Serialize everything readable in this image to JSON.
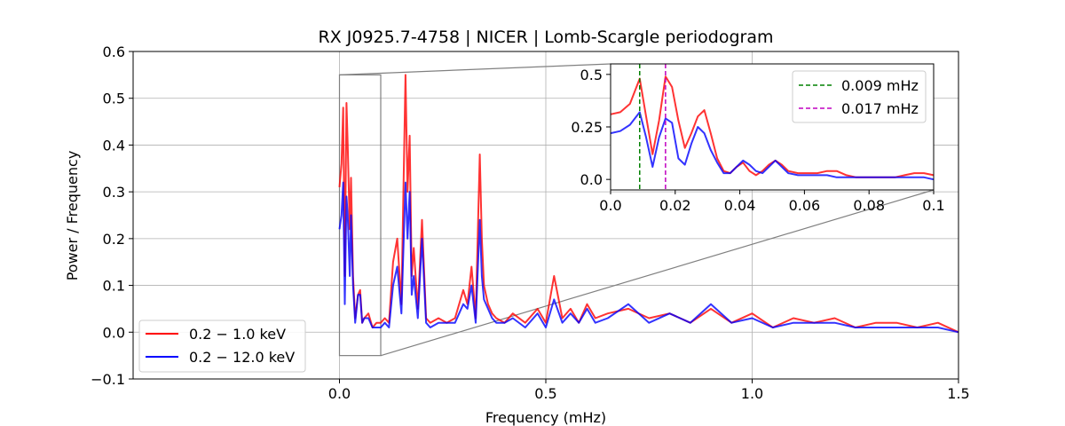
{
  "chart_data": [
    {
      "type": "line",
      "title": "RX J0925.7-4758 | NICER | Lomb-Scargle periodogram",
      "xlabel": "Frequency (mHz)",
      "ylabel": "Power / Frequency",
      "xlim": [
        -0.5,
        1.5
      ],
      "ylim": [
        -0.1,
        0.6
      ],
      "xticks": [
        "0.0",
        "0.5",
        "1.0",
        "1.5"
      ],
      "yticks": [
        "−0.1",
        "0.0",
        "0.1",
        "0.2",
        "0.3",
        "0.4",
        "0.5",
        "0.6"
      ],
      "grid": true,
      "legend_position": "lower-left",
      "series": [
        {
          "name": "0.2 − 1.0 keV",
          "color": "#ff0000",
          "x": [
            0.0,
            0.005,
            0.009,
            0.013,
            0.017,
            0.02,
            0.025,
            0.028,
            0.033,
            0.038,
            0.045,
            0.05,
            0.055,
            0.06,
            0.07,
            0.08,
            0.09,
            0.1,
            0.11,
            0.12,
            0.13,
            0.14,
            0.15,
            0.16,
            0.165,
            0.17,
            0.175,
            0.18,
            0.19,
            0.2,
            0.21,
            0.22,
            0.24,
            0.26,
            0.28,
            0.3,
            0.31,
            0.32,
            0.33,
            0.34,
            0.345,
            0.35,
            0.36,
            0.37,
            0.38,
            0.4,
            0.42,
            0.45,
            0.48,
            0.5,
            0.52,
            0.54,
            0.56,
            0.58,
            0.6,
            0.62,
            0.65,
            0.7,
            0.75,
            0.8,
            0.85,
            0.9,
            0.95,
            1.0,
            1.05,
            1.1,
            1.15,
            1.2,
            1.25,
            1.3,
            1.35,
            1.4,
            1.45,
            1.5
          ],
          "y": [
            0.31,
            0.36,
            0.48,
            0.12,
            0.49,
            0.4,
            0.22,
            0.33,
            0.12,
            0.03,
            0.08,
            0.09,
            0.02,
            0.03,
            0.04,
            0.01,
            0.02,
            0.02,
            0.03,
            0.02,
            0.15,
            0.2,
            0.06,
            0.55,
            0.3,
            0.42,
            0.12,
            0.18,
            0.05,
            0.24,
            0.03,
            0.02,
            0.03,
            0.02,
            0.03,
            0.09,
            0.06,
            0.14,
            0.03,
            0.38,
            0.2,
            0.1,
            0.06,
            0.04,
            0.03,
            0.02,
            0.04,
            0.02,
            0.05,
            0.02,
            0.12,
            0.03,
            0.05,
            0.02,
            0.06,
            0.03,
            0.04,
            0.05,
            0.03,
            0.04,
            0.02,
            0.05,
            0.02,
            0.04,
            0.01,
            0.03,
            0.02,
            0.03,
            0.01,
            0.02,
            0.02,
            0.01,
            0.02,
            0.0
          ]
        },
        {
          "name": "0.2 − 12.0 keV",
          "color": "#0000ff",
          "x": [
            0.0,
            0.005,
            0.009,
            0.013,
            0.017,
            0.02,
            0.025,
            0.028,
            0.033,
            0.038,
            0.045,
            0.05,
            0.055,
            0.06,
            0.07,
            0.08,
            0.09,
            0.1,
            0.11,
            0.12,
            0.13,
            0.14,
            0.15,
            0.16,
            0.165,
            0.17,
            0.175,
            0.18,
            0.19,
            0.2,
            0.21,
            0.22,
            0.24,
            0.26,
            0.28,
            0.3,
            0.31,
            0.32,
            0.33,
            0.34,
            0.345,
            0.35,
            0.36,
            0.37,
            0.38,
            0.4,
            0.42,
            0.45,
            0.48,
            0.5,
            0.52,
            0.54,
            0.56,
            0.58,
            0.6,
            0.62,
            0.65,
            0.7,
            0.75,
            0.8,
            0.85,
            0.9,
            0.95,
            1.0,
            1.05,
            1.1,
            1.15,
            1.2,
            1.25,
            1.3,
            1.35,
            1.4,
            1.45,
            1.5
          ],
          "y": [
            0.22,
            0.25,
            0.32,
            0.06,
            0.29,
            0.25,
            0.12,
            0.25,
            0.1,
            0.02,
            0.08,
            0.08,
            0.02,
            0.03,
            0.03,
            0.01,
            0.01,
            0.01,
            0.02,
            0.01,
            0.1,
            0.14,
            0.04,
            0.32,
            0.2,
            0.3,
            0.08,
            0.12,
            0.03,
            0.2,
            0.02,
            0.01,
            0.02,
            0.02,
            0.02,
            0.06,
            0.05,
            0.1,
            0.02,
            0.24,
            0.12,
            0.07,
            0.05,
            0.03,
            0.02,
            0.02,
            0.03,
            0.01,
            0.04,
            0.01,
            0.07,
            0.02,
            0.04,
            0.02,
            0.05,
            0.02,
            0.03,
            0.06,
            0.02,
            0.04,
            0.02,
            0.06,
            0.02,
            0.03,
            0.01,
            0.02,
            0.02,
            0.02,
            0.01,
            0.01,
            0.01,
            0.01,
            0.01,
            0.0
          ]
        }
      ],
      "inset_box": {
        "x": [
          0.0,
          0.1
        ],
        "y": [
          -0.05,
          0.55
        ]
      }
    },
    {
      "type": "line",
      "title": "",
      "xlim": [
        0.0,
        0.1
      ],
      "ylim": [
        -0.05,
        0.55
      ],
      "xticks": [
        "0.00",
        "0.02",
        "0.04",
        "0.06",
        "0.08",
        "0.10"
      ],
      "yticks": [
        "0.0",
        "0.25",
        "0.5"
      ],
      "grid": false,
      "legend_position": "upper-right",
      "vlines": [
        {
          "x": 0.009,
          "label": "0.009 mHz",
          "color": "#008000"
        },
        {
          "x": 0.017,
          "label": "0.017 mHz",
          "color": "#c000c0"
        }
      ],
      "series": [
        {
          "color": "#ff0000",
          "x": [
            0.0,
            0.003,
            0.006,
            0.009,
            0.011,
            0.013,
            0.015,
            0.017,
            0.019,
            0.021,
            0.023,
            0.025,
            0.027,
            0.029,
            0.031,
            0.033,
            0.035,
            0.037,
            0.039,
            0.041,
            0.043,
            0.045,
            0.047,
            0.049,
            0.051,
            0.053,
            0.055,
            0.058,
            0.061,
            0.064,
            0.067,
            0.07,
            0.073,
            0.076,
            0.079,
            0.082,
            0.085,
            0.088,
            0.091,
            0.094,
            0.097,
            0.1
          ],
          "y": [
            0.31,
            0.32,
            0.36,
            0.48,
            0.3,
            0.12,
            0.28,
            0.49,
            0.44,
            0.28,
            0.15,
            0.22,
            0.3,
            0.33,
            0.22,
            0.1,
            0.04,
            0.03,
            0.06,
            0.08,
            0.04,
            0.02,
            0.04,
            0.07,
            0.09,
            0.07,
            0.04,
            0.03,
            0.03,
            0.03,
            0.04,
            0.04,
            0.02,
            0.01,
            0.01,
            0.01,
            0.01,
            0.01,
            0.02,
            0.03,
            0.03,
            0.02
          ]
        },
        {
          "color": "#0000ff",
          "x": [
            0.0,
            0.003,
            0.006,
            0.009,
            0.011,
            0.013,
            0.015,
            0.017,
            0.019,
            0.021,
            0.023,
            0.025,
            0.027,
            0.029,
            0.031,
            0.033,
            0.035,
            0.037,
            0.039,
            0.041,
            0.043,
            0.045,
            0.047,
            0.049,
            0.051,
            0.053,
            0.055,
            0.058,
            0.061,
            0.064,
            0.067,
            0.07,
            0.073,
            0.076,
            0.079,
            0.082,
            0.085,
            0.088,
            0.091,
            0.094,
            0.097,
            0.1
          ],
          "y": [
            0.22,
            0.23,
            0.26,
            0.32,
            0.2,
            0.06,
            0.2,
            0.29,
            0.27,
            0.1,
            0.07,
            0.17,
            0.25,
            0.22,
            0.14,
            0.08,
            0.03,
            0.03,
            0.06,
            0.09,
            0.07,
            0.04,
            0.03,
            0.06,
            0.09,
            0.06,
            0.03,
            0.02,
            0.02,
            0.02,
            0.02,
            0.01,
            0.01,
            0.01,
            0.01,
            0.01,
            0.01,
            0.01,
            0.01,
            0.01,
            0.01,
            0.0
          ]
        }
      ]
    }
  ]
}
